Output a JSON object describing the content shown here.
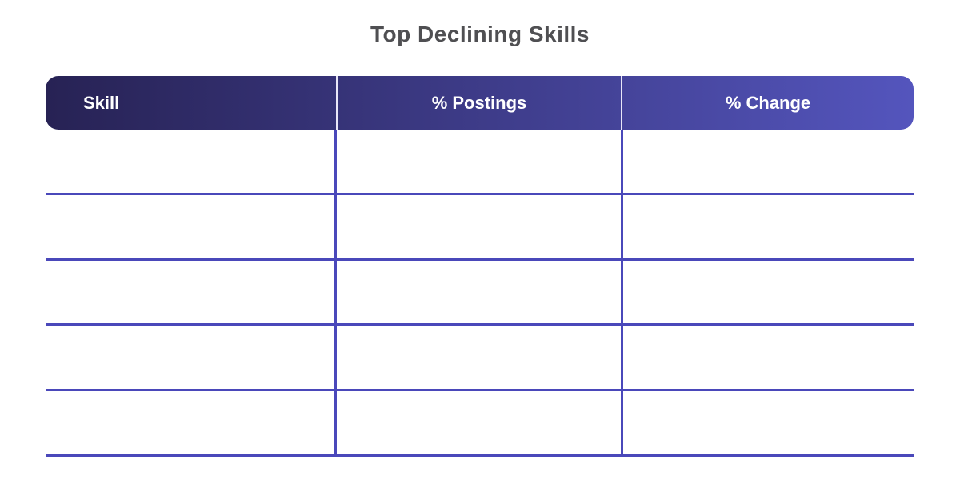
{
  "title": "Top Declining Skills",
  "table": {
    "columns": [
      {
        "label": "Skill",
        "align": "left"
      },
      {
        "label": "% Postings",
        "align": "center"
      },
      {
        "label": "% Change",
        "align": "center"
      }
    ],
    "row_count": 5,
    "rows": [
      [
        "",
        "",
        ""
      ],
      [
        "",
        "",
        ""
      ],
      [
        "",
        "",
        ""
      ],
      [
        "",
        "",
        ""
      ],
      [
        "",
        "",
        ""
      ]
    ]
  },
  "colors": {
    "background": "#ffffff",
    "title_text": "#4f4f52",
    "header_gradient_left": "#272254",
    "header_gradient_right": "#5455bd",
    "header_text": "#ffffff",
    "header_divider": "#e9e7f8",
    "grid_line": "#4a48ba"
  },
  "chart_data": {
    "type": "table",
    "title": "Top Declining Skills",
    "columns": [
      "Skill",
      "% Postings",
      "% Change"
    ],
    "rows": [
      [
        "",
        "",
        ""
      ],
      [
        "",
        "",
        ""
      ],
      [
        "",
        "",
        ""
      ],
      [
        "",
        "",
        ""
      ],
      [
        "",
        "",
        ""
      ]
    ],
    "layout_hints": {
      "header_style": "dark-to-purple horizontal gradient, rounded corners",
      "body": "5 empty rows with purple horizontal separators and two vertical column dividers, no outer border"
    }
  }
}
